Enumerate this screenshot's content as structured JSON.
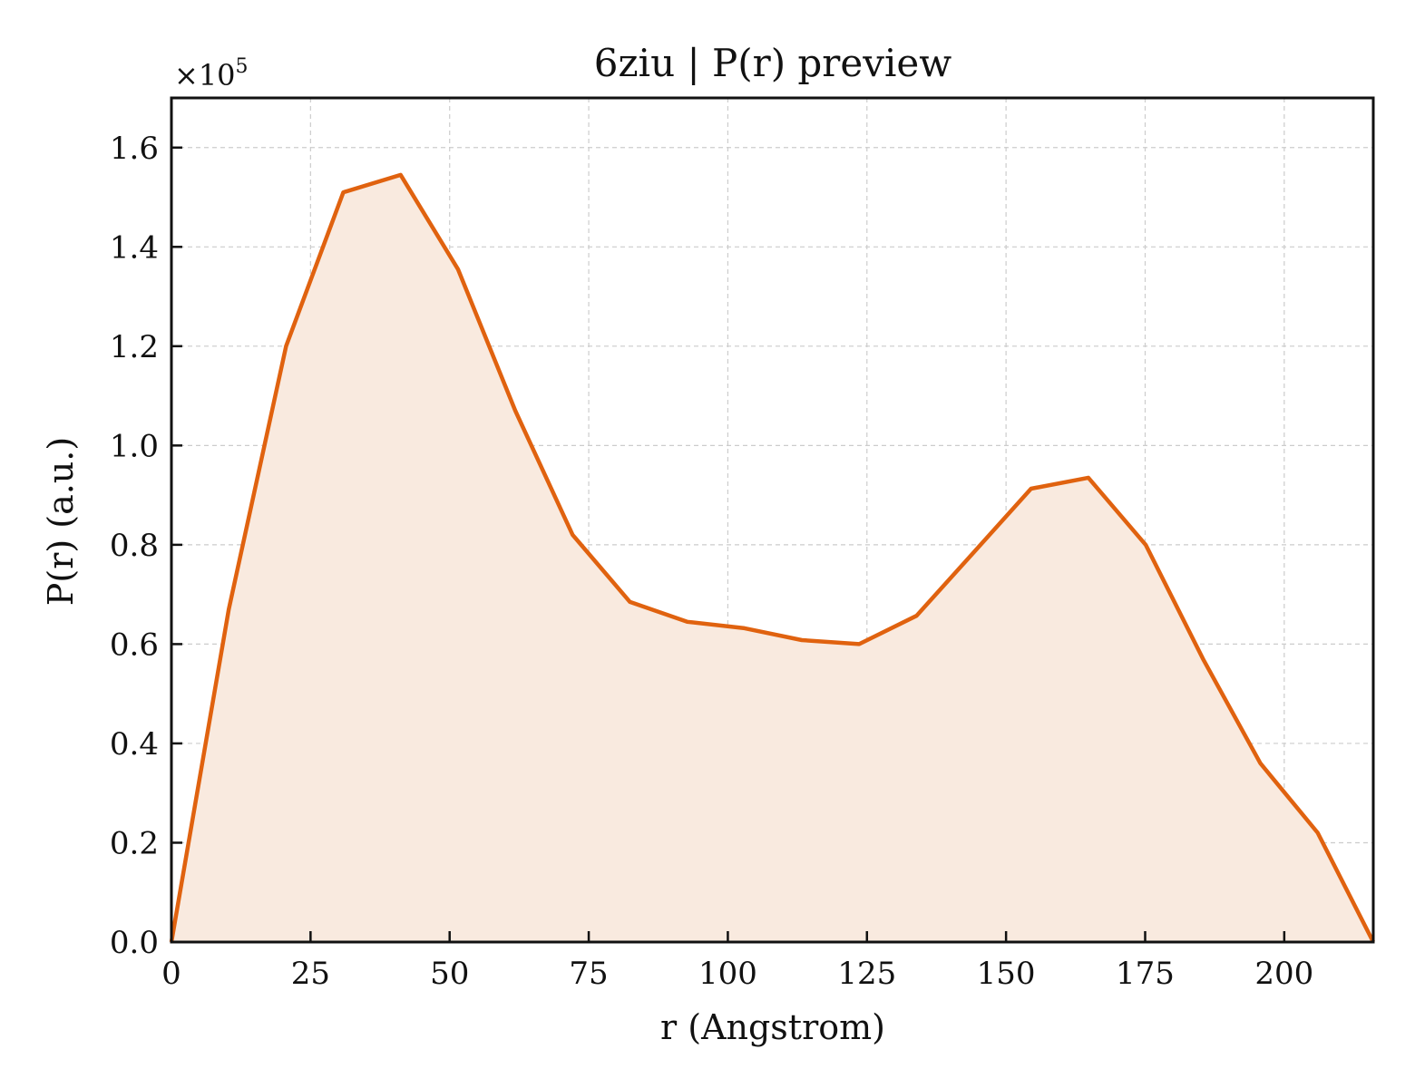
{
  "chart_data": {
    "type": "area",
    "title": "6ziu | P(r) preview",
    "xlabel": "r (Angstrom)",
    "ylabel": "P(r) (a.u.)",
    "y_multiplier_label": "×10",
    "y_multiplier_exp": "5",
    "xlim": [
      0,
      216
    ],
    "ylim": [
      0,
      1.7
    ],
    "x_ticks": [
      0,
      25,
      50,
      75,
      100,
      125,
      150,
      175,
      200
    ],
    "x_tick_labels": [
      "0",
      "25",
      "50",
      "75",
      "100",
      "125",
      "150",
      "175",
      "200"
    ],
    "y_ticks": [
      0,
      0.2,
      0.4,
      0.6,
      0.8,
      1.0,
      1.2,
      1.4,
      1.6
    ],
    "y_tick_labels": [
      "0.0",
      "0.2",
      "0.4",
      "0.6",
      "0.8",
      "1.0",
      "1.2",
      "1.4",
      "1.6"
    ],
    "grid": true,
    "series": [
      {
        "color": "#e0620f",
        "fill": "#f9eadf",
        "x": [
          0,
          10.3,
          20.6,
          30.9,
          41.2,
          51.5,
          61.8,
          72.1,
          82.4,
          92.7,
          103,
          113.3,
          123.6,
          133.9,
          144.2,
          154.5,
          164.8,
          175.1,
          185.4,
          195.7,
          206,
          216
        ],
        "y": [
          0.0,
          0.67,
          1.2,
          1.51,
          1.545,
          1.355,
          1.07,
          0.82,
          0.685,
          0.645,
          0.632,
          0.608,
          0.6,
          0.657,
          0.785,
          0.913,
          0.935,
          0.8,
          0.57,
          0.36,
          0.22,
          0.0
        ]
      }
    ]
  }
}
